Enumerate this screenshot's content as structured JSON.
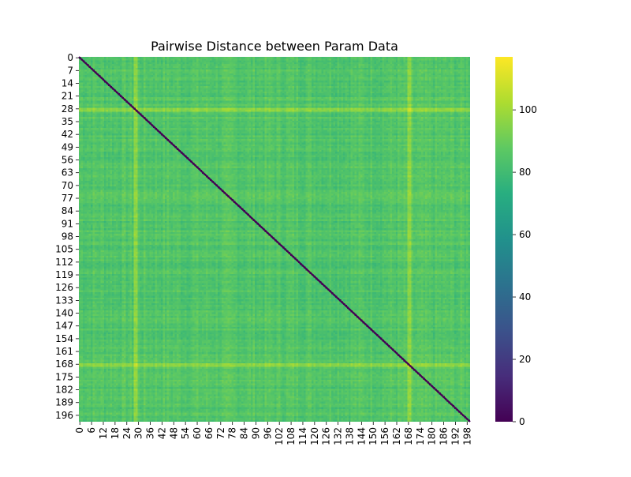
{
  "chart_data": {
    "type": "heatmap",
    "title": "Pairwise Distance between Param Data",
    "matrix_size": 200,
    "x_tick_labels": [
      "0",
      "6",
      "12",
      "18",
      "24",
      "30",
      "36",
      "42",
      "48",
      "54",
      "60",
      "66",
      "72",
      "78",
      "84",
      "90",
      "96",
      "102",
      "108",
      "114",
      "120",
      "126",
      "132",
      "138",
      "144",
      "150",
      "156",
      "162",
      "168",
      "174",
      "180",
      "186",
      "192",
      "198"
    ],
    "y_tick_labels": [
      "0",
      "7",
      "14",
      "21",
      "28",
      "35",
      "42",
      "49",
      "56",
      "63",
      "70",
      "77",
      "84",
      "91",
      "98",
      "105",
      "112",
      "119",
      "126",
      "133",
      "140",
      "147",
      "154",
      "161",
      "168",
      "175",
      "182",
      "189",
      "196"
    ],
    "colorbar": {
      "colormap": "viridis",
      "range": [
        0,
        117
      ],
      "tick_labels": [
        "0",
        "20",
        "40",
        "60",
        "80",
        "100"
      ]
    },
    "diagonal_value": 0,
    "typical_value": 85,
    "highlight_rows": [
      28,
      29,
      168,
      169
    ],
    "highlight_value": 108
  }
}
